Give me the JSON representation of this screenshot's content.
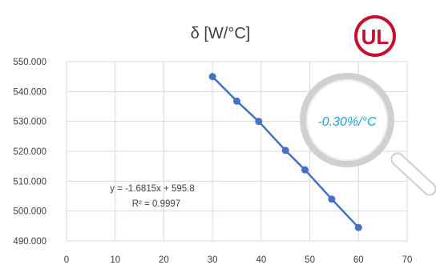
{
  "chart_data": {
    "type": "scatter",
    "title": "δ [W/°C]",
    "xlabel": "",
    "ylabel": "",
    "xlim": [
      0,
      70
    ],
    "ylim": [
      490,
      550
    ],
    "x_ticks": [
      0,
      10,
      20,
      30,
      40,
      50,
      60,
      70
    ],
    "y_ticks": [
      "490.000",
      "500.000",
      "510.000",
      "520.000",
      "530.000",
      "540.000",
      "550.000"
    ],
    "grid": true,
    "series": [
      {
        "x": [
          30,
          35,
          39.5,
          45,
          49,
          54.5,
          60
        ],
        "y": [
          545.0,
          536.8,
          530.0,
          520.3,
          513.8,
          504.0,
          494.5
        ],
        "trendline": true
      }
    ],
    "annotations": {
      "equation": "y = -1.6815x + 595.8",
      "r_squared": "R² = 0.9997",
      "callout": "-0.30%/°C"
    },
    "logo": "UL",
    "colors": {
      "series": "#4472c4",
      "callout_text": "#1fa0d8",
      "logo": "#c8102e",
      "grid": "#d9d9d9"
    }
  }
}
